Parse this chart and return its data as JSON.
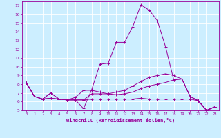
{
  "xlabel": "Windchill (Refroidissement éolien,°C)",
  "bg_color": "#cceeff",
  "line_color": "#990099",
  "grid_color": "#ffffff",
  "xlim": [
    -0.5,
    23.5
  ],
  "ylim": [
    5,
    17.5
  ],
  "yticks": [
    5,
    6,
    7,
    8,
    9,
    10,
    11,
    12,
    13,
    14,
    15,
    16,
    17
  ],
  "xticks": [
    0,
    1,
    2,
    3,
    4,
    5,
    6,
    7,
    8,
    9,
    10,
    11,
    12,
    13,
    14,
    15,
    16,
    17,
    18,
    19,
    20,
    21,
    22,
    23
  ],
  "series": [
    [
      8.2,
      6.6,
      6.3,
      7.0,
      6.3,
      6.2,
      6.2,
      5.2,
      7.4,
      10.3,
      10.4,
      12.8,
      12.8,
      14.6,
      17.1,
      16.5,
      15.3,
      12.3,
      8.5,
      8.6,
      6.6,
      6.1,
      5.0,
      5.4
    ],
    [
      8.2,
      6.6,
      6.3,
      7.0,
      6.3,
      6.2,
      6.5,
      7.3,
      7.3,
      7.1,
      6.9,
      6.8,
      6.9,
      7.1,
      7.5,
      7.8,
      8.0,
      8.2,
      8.5,
      8.6,
      6.6,
      6.1,
      5.0,
      5.4
    ],
    [
      8.2,
      6.6,
      6.3,
      6.4,
      6.3,
      6.2,
      6.2,
      6.2,
      6.3,
      6.3,
      6.3,
      6.3,
      6.3,
      6.3,
      6.4,
      6.3,
      6.3,
      6.3,
      6.3,
      6.3,
      6.3,
      6.1,
      5.0,
      5.4
    ],
    [
      8.2,
      6.6,
      6.3,
      6.4,
      6.3,
      6.2,
      6.2,
      6.2,
      6.9,
      6.9,
      6.9,
      7.1,
      7.3,
      7.8,
      8.3,
      8.8,
      9.0,
      9.2,
      9.0,
      8.6,
      6.6,
      6.1,
      5.0,
      5.4
    ]
  ]
}
